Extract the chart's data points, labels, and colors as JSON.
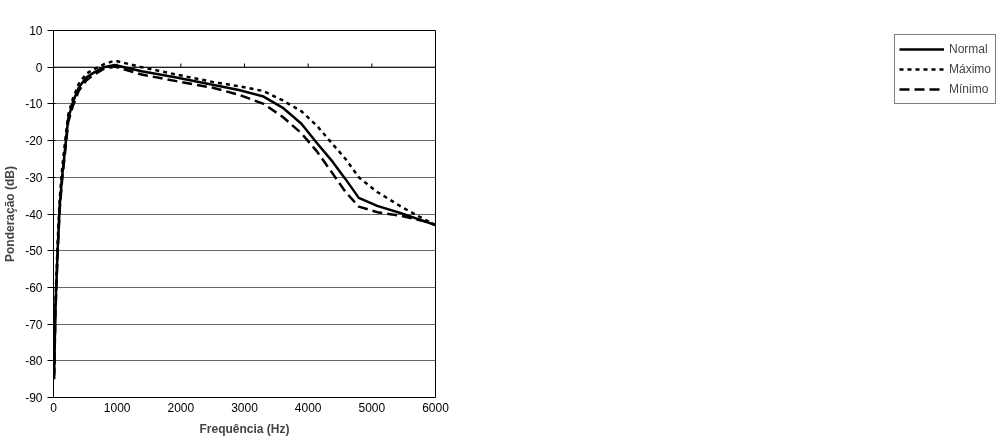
{
  "chart_data": {
    "type": "line",
    "xlabel": "Frequência (Hz)",
    "ylabel": "Ponderação (dB)",
    "xlim": [
      0,
      6000
    ],
    "ylim": [
      -90,
      10
    ],
    "xticks": [
      0,
      1000,
      2000,
      3000,
      4000,
      5000,
      6000
    ],
    "yticks": [
      -90,
      -80,
      -70,
      -60,
      -50,
      -40,
      -30,
      -20,
      -10,
      0,
      10
    ],
    "grid": "y",
    "legend": "right",
    "marker": "none",
    "series": [
      {
        "name": "Normal",
        "color": "#000000",
        "line_style": "solid",
        "x": [
          10,
          30,
          67,
          97,
          134,
          171,
          231,
          305,
          395,
          514,
          640,
          790,
          960,
          1385,
          1930,
          2500,
          2911,
          3300,
          3597,
          3894,
          4140,
          4386,
          4587,
          4795,
          5085,
          5460,
          5830,
          6000
        ],
        "values": [
          -84,
          -66,
          -49,
          -38,
          -30,
          -24,
          -14,
          -9.5,
          -5.6,
          -2.8,
          -1.4,
          0,
          0.6,
          -1.1,
          -2.8,
          -4.8,
          -6.2,
          -8,
          -11,
          -15.4,
          -20.7,
          -25.8,
          -30.5,
          -35.6,
          -37.8,
          -39.8,
          -42,
          -43
        ]
      },
      {
        "name": "Máximo",
        "color": "#000000",
        "line_style": "dotted",
        "x": [
          10,
          30,
          67,
          97,
          134,
          171,
          231,
          305,
          395,
          514,
          640,
          790,
          960,
          1385,
          1930,
          2500,
          2911,
          3300,
          3597,
          3894,
          4140,
          4386,
          4587,
          4795,
          5085,
          5460,
          5830,
          6000
        ],
        "values": [
          -83,
          -64,
          -47,
          -36,
          -28,
          -22,
          -13,
          -8.5,
          -4.6,
          -1.8,
          -0.5,
          0.8,
          1.8,
          0,
          -2,
          -4,
          -5.2,
          -6.5,
          -9,
          -12,
          -16,
          -21,
          -25,
          -30,
          -34,
          -38,
          -41.5,
          -43
        ]
      },
      {
        "name": "Mínimo",
        "color": "#000000",
        "line_style": "dashed",
        "x": [
          10,
          30,
          67,
          97,
          134,
          171,
          231,
          305,
          395,
          514,
          640,
          790,
          960,
          1385,
          1930,
          2500,
          2911,
          3300,
          3597,
          3894,
          4140,
          4386,
          4587,
          4795,
          5085,
          5460,
          5830,
          6000
        ],
        "values": [
          -85,
          -67,
          -50,
          -39,
          -31,
          -25,
          -15,
          -10.5,
          -6.5,
          -3.6,
          -2,
          -0.5,
          0.2,
          -2,
          -3.8,
          -5.6,
          -7.5,
          -10,
          -13.5,
          -18,
          -23,
          -29,
          -34,
          -38,
          -39.5,
          -40.5,
          -42,
          -43
        ]
      }
    ]
  }
}
